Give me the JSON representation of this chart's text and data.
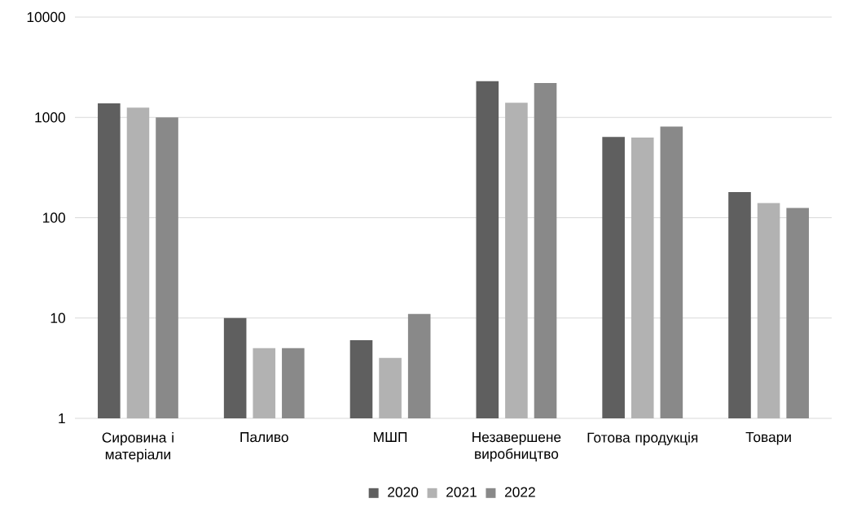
{
  "chart_data": {
    "type": "bar",
    "log": true,
    "grid": "y",
    "legend": "bottom",
    "categories": [
      "Сировина і матеріали",
      "Паливо",
      "МШП",
      "Незавершене виробництво",
      "Готова продукція",
      "Товари"
    ],
    "series": [
      {
        "name": "2020",
        "color": "#5f5f5f",
        "values": [
          1380,
          10,
          6,
          2300,
          640,
          180
        ]
      },
      {
        "name": "2021",
        "color": "#b2b2b2",
        "values": [
          1250,
          5,
          4,
          1400,
          630,
          140
        ]
      },
      {
        "name": "2022",
        "color": "#898989",
        "values": [
          1000,
          5,
          11,
          2200,
          810,
          125
        ]
      }
    ],
    "ylim": [
      1,
      10000
    ],
    "yticks": [
      1,
      10,
      100,
      1000,
      10000
    ]
  }
}
